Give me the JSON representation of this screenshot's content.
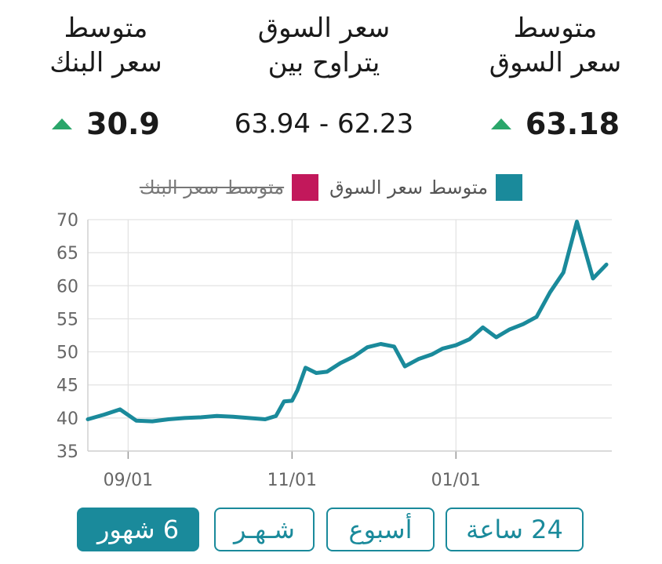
{
  "stats": {
    "market_avg": {
      "label_line1": "متوسط",
      "label_line2": "سعر السوق",
      "value": "63.18",
      "trend": "up"
    },
    "range": {
      "label_line1": "سعر السوق",
      "label_line2": "يتراوح بين",
      "value": "63.94 - 62.23"
    },
    "bank_avg": {
      "label_line1": "متوسط",
      "label_line2": "سعر البنك",
      "value": "30.9",
      "trend": "up"
    }
  },
  "buttons": {
    "h24": "24 ساعة",
    "week": "أسبوع",
    "month": "شـهـر",
    "six_months": "6 شهور",
    "active": "six_months"
  },
  "colors": {
    "market": "#1a8a9b",
    "bank": "#c2185b",
    "up": "#2aa66a"
  },
  "chart_data": {
    "type": "line",
    "legend": [
      {
        "name": "متوسط سعر السوق",
        "color": "#1a8a9b",
        "enabled": true
      },
      {
        "name": "متوسط سعر البنك",
        "color": "#c2185b",
        "enabled": false
      }
    ],
    "legend_position": "top-center",
    "ylim": [
      35,
      70
    ],
    "yticks": [
      35,
      40,
      45,
      50,
      55,
      60,
      65,
      70
    ],
    "xticks": [
      {
        "label": "09/01",
        "date": "2023-09-01"
      },
      {
        "label": "11/01",
        "date": "2023-11-01"
      },
      {
        "label": "01/01",
        "date": "2024-01-01"
      }
    ],
    "grid": true,
    "series": [
      {
        "name": "متوسط سعر السوق",
        "color": "#1a8a9b",
        "points": [
          {
            "x": "2023-08-17",
            "y": 39.8
          },
          {
            "x": "2023-08-23",
            "y": 40.5
          },
          {
            "x": "2023-08-29",
            "y": 41.3
          },
          {
            "x": "2023-09-04",
            "y": 39.6
          },
          {
            "x": "2023-09-10",
            "y": 39.5
          },
          {
            "x": "2023-09-16",
            "y": 39.8
          },
          {
            "x": "2023-09-22",
            "y": 40.0
          },
          {
            "x": "2023-09-28",
            "y": 40.1
          },
          {
            "x": "2023-10-04",
            "y": 40.3
          },
          {
            "x": "2023-10-10",
            "y": 40.2
          },
          {
            "x": "2023-10-16",
            "y": 40.0
          },
          {
            "x": "2023-10-22",
            "y": 39.8
          },
          {
            "x": "2023-10-26",
            "y": 40.3
          },
          {
            "x": "2023-10-29",
            "y": 42.5
          },
          {
            "x": "2023-11-01",
            "y": 42.6
          },
          {
            "x": "2023-11-03",
            "y": 44.2
          },
          {
            "x": "2023-11-06",
            "y": 47.6
          },
          {
            "x": "2023-11-10",
            "y": 46.8
          },
          {
            "x": "2023-11-14",
            "y": 47.0
          },
          {
            "x": "2023-11-19",
            "y": 48.3
          },
          {
            "x": "2023-11-24",
            "y": 49.3
          },
          {
            "x": "2023-11-29",
            "y": 50.7
          },
          {
            "x": "2023-12-04",
            "y": 51.2
          },
          {
            "x": "2023-12-09",
            "y": 50.8
          },
          {
            "x": "2023-12-13",
            "y": 47.8
          },
          {
            "x": "2023-12-18",
            "y": 48.9
          },
          {
            "x": "2023-12-23",
            "y": 49.6
          },
          {
            "x": "2023-12-27",
            "y": 50.5
          },
          {
            "x": "2024-01-01",
            "y": 51.0
          },
          {
            "x": "2024-01-06",
            "y": 51.9
          },
          {
            "x": "2024-01-11",
            "y": 53.7
          },
          {
            "x": "2024-01-16",
            "y": 52.2
          },
          {
            "x": "2024-01-21",
            "y": 53.4
          },
          {
            "x": "2024-01-26",
            "y": 54.2
          },
          {
            "x": "2024-01-31",
            "y": 55.3
          },
          {
            "x": "2024-02-05",
            "y": 59.0
          },
          {
            "x": "2024-02-10",
            "y": 62.0
          },
          {
            "x": "2024-02-15",
            "y": 69.7
          },
          {
            "x": "2024-02-21",
            "y": 61.1
          },
          {
            "x": "2024-02-26",
            "y": 63.2
          }
        ]
      }
    ]
  }
}
